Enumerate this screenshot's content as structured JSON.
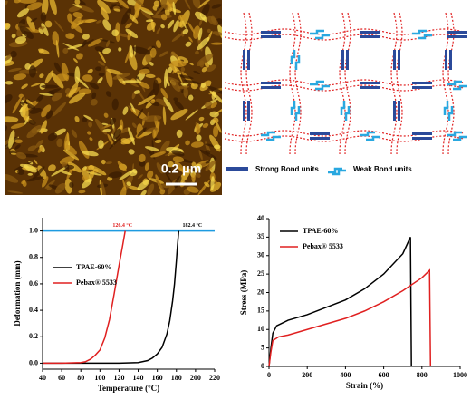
{
  "afm_image": {
    "scale_label": "0.2 μm"
  },
  "schematic": {
    "legend": [
      "Strong Bond units",
      "Weak Bond units"
    ]
  },
  "chart_data": [
    {
      "type": "line",
      "xlabel": "Temperature (°C)",
      "ylabel": "Deformation (mm)",
      "xlim": [
        40,
        220
      ],
      "ylim": [
        -0.045,
        1.1
      ],
      "xticks": [
        40,
        60,
        80,
        100,
        120,
        140,
        160,
        180,
        200,
        220
      ],
      "yticks": [
        {
          "value": 0,
          "label": "0.0"
        },
        0.2,
        0.4,
        0.6,
        0.8,
        {
          "value": 1,
          "label": "1.0"
        }
      ],
      "legend": "upper left",
      "reference_line": {
        "y": 1.0,
        "color": "#1e9be0"
      },
      "annotations": [
        {
          "text": "126.4 °C",
          "x": 126.4,
          "y": 1.0,
          "color": "#e02020"
        },
        {
          "text": "182.4 °C",
          "x": 182.4,
          "y": 1.0,
          "color": "#000000"
        }
      ],
      "series": [
        {
          "name": "TPAE-60%",
          "color": "#000000",
          "x": [
            40,
            60,
            80,
            100,
            120,
            140,
            150,
            155,
            160,
            165,
            170,
            173,
            176,
            178,
            180,
            181,
            182.4
          ],
          "values": [
            0,
            0,
            0,
            0,
            0,
            0.005,
            0.02,
            0.04,
            0.07,
            0.12,
            0.22,
            0.32,
            0.47,
            0.6,
            0.78,
            0.88,
            1.0
          ]
        },
        {
          "name": "Pebax® 5533",
          "color": "#e02020",
          "x": [
            40,
            60,
            80,
            85,
            90,
            95,
            100,
            105,
            110,
            115,
            120,
            124,
            126.4
          ],
          "values": [
            0,
            0,
            0.005,
            0.012,
            0.03,
            0.06,
            0.1,
            0.19,
            0.33,
            0.53,
            0.74,
            0.9,
            1.0
          ]
        }
      ]
    },
    {
      "type": "line",
      "xlabel": "Strain (%)",
      "ylabel": "Stress (MPa)",
      "xlim": [
        0,
        1000
      ],
      "ylim": [
        0,
        40
      ],
      "xticks": [
        0,
        200,
        400,
        600,
        800,
        1000
      ],
      "yticks": [
        0,
        5,
        10,
        15,
        20,
        25,
        30,
        35,
        40
      ],
      "legend": "upper left",
      "series": [
        {
          "name": "TPAE-60%",
          "color": "#000000",
          "x": [
            0,
            10,
            20,
            40,
            100,
            200,
            300,
            400,
            500,
            600,
            700,
            740,
            745
          ],
          "values": [
            0,
            5,
            9,
            11,
            12.5,
            14,
            16,
            18,
            21,
            25,
            30.5,
            35,
            0
          ]
        },
        {
          "name": "Pebax® 5533",
          "color": "#e02020",
          "x": [
            0,
            10,
            20,
            50,
            100,
            200,
            300,
            400,
            500,
            600,
            700,
            800,
            840,
            845
          ],
          "values": [
            0,
            4,
            7,
            8,
            8.5,
            10,
            11.5,
            13,
            15,
            17.5,
            20.5,
            24,
            26,
            0
          ]
        }
      ]
    }
  ]
}
